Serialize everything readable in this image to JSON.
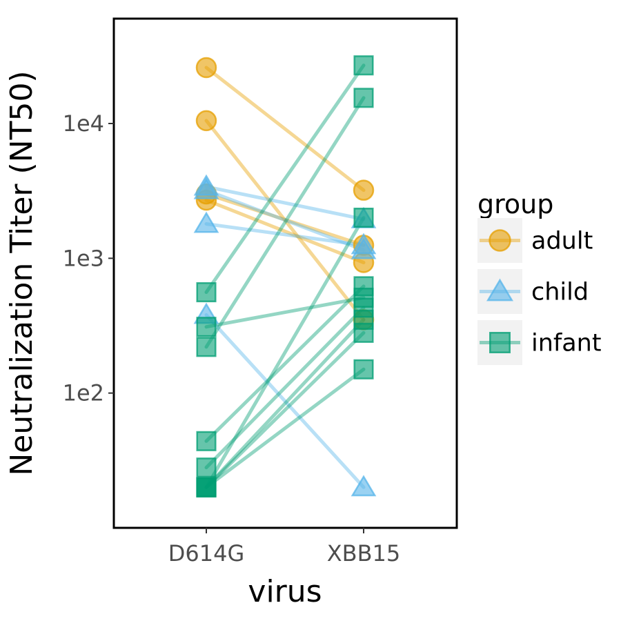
{
  "chart_data": {
    "type": "scatter",
    "connected_pairs": true,
    "xlabel": "virus",
    "ylabel": "Neutralization Titer (NT50)",
    "categories": [
      "D614G",
      "XBB15"
    ],
    "y_scale": "log10",
    "ylim": [
      10,
      60000
    ],
    "y_ticks": [
      100,
      1000,
      10000
    ],
    "y_tick_labels": [
      "1e2",
      "1e3",
      "1e4"
    ],
    "grid": false,
    "legend": {
      "title": "group",
      "position": "right",
      "entries": [
        {
          "label": "adult",
          "marker": "circle",
          "color": "#E69F00"
        },
        {
          "label": "child",
          "marker": "triangle",
          "color": "#56B4E9"
        },
        {
          "label": "infant",
          "marker": "square",
          "color": "#009E73"
        }
      ]
    },
    "series": [
      {
        "group": "adult",
        "values": [
          26000,
          3200
        ]
      },
      {
        "group": "adult",
        "values": [
          10500,
          350
        ]
      },
      {
        "group": "adult",
        "values": [
          3000,
          1250
        ]
      },
      {
        "group": "adult",
        "values": [
          2700,
          930
        ]
      },
      {
        "group": "child",
        "values": [
          3400,
          1950
        ]
      },
      {
        "group": "child",
        "values": [
          3200,
          1150
        ]
      },
      {
        "group": "child",
        "values": [
          1800,
          1250
        ]
      },
      {
        "group": "child",
        "values": [
          380,
          20
        ]
      },
      {
        "group": "infant",
        "values": [
          560,
          27000
        ]
      },
      {
        "group": "infant",
        "values": [
          220,
          15500
        ]
      },
      {
        "group": "infant",
        "values": [
          310,
          510
        ]
      },
      {
        "group": "infant",
        "values": [
          44,
          620
        ]
      },
      {
        "group": "infant",
        "values": [
          28,
          430
        ]
      },
      {
        "group": "infant",
        "values": [
          20,
          2000
        ]
      },
      {
        "group": "infant",
        "values": [
          20,
          350
        ]
      },
      {
        "group": "infant",
        "values": [
          20,
          280
        ]
      },
      {
        "group": "infant",
        "values": [
          20,
          150
        ]
      }
    ]
  }
}
